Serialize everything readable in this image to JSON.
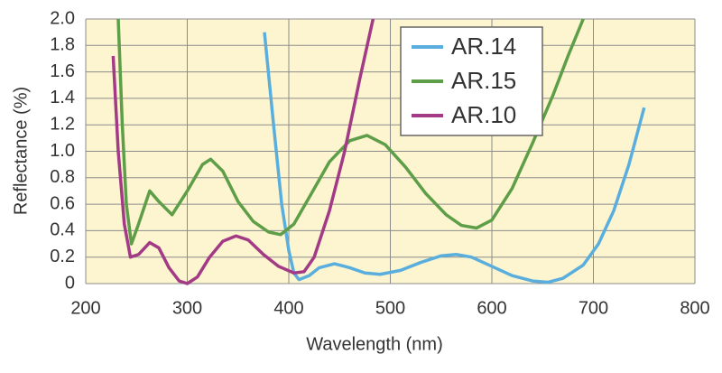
{
  "chart_data": {
    "type": "line",
    "xlabel": "Wavelength (nm)",
    "ylabel": "Reflectance (%)",
    "xlim": [
      200,
      800
    ],
    "xticks": [
      200,
      300,
      400,
      500,
      600,
      700,
      800
    ],
    "ylim": [
      0,
      2
    ],
    "yticks": [
      0,
      0.2,
      0.4,
      0.6,
      0.8,
      {
        "value": 1,
        "label": "1.0"
      },
      1.2,
      1.4,
      1.6,
      1.8,
      {
        "value": 2,
        "label": "2.0"
      }
    ],
    "grid": true,
    "legend": "upper center",
    "background": "#fdf5d0",
    "series": [
      {
        "name": "AR.14",
        "color": "#5aaede",
        "x": [
          376,
          385,
          393,
          400,
          405,
          410,
          420,
          430,
          445,
          460,
          475,
          490,
          510,
          530,
          550,
          565,
          580,
          600,
          620,
          640,
          655,
          670,
          690,
          705,
          720,
          735,
          750
        ],
        "values": [
          1.9,
          1.2,
          0.6,
          0.25,
          0.08,
          0.03,
          0.06,
          0.12,
          0.15,
          0.12,
          0.08,
          0.07,
          0.1,
          0.16,
          0.21,
          0.22,
          0.2,
          0.13,
          0.06,
          0.02,
          0.01,
          0.04,
          0.14,
          0.3,
          0.55,
          0.9,
          1.33
        ]
      },
      {
        "name": "AR.15",
        "color": "#5e9e48",
        "x": [
          232,
          236,
          240,
          245,
          252,
          263,
          272,
          285,
          300,
          315,
          323,
          335,
          350,
          365,
          380,
          392,
          405,
          420,
          440,
          460,
          477,
          495,
          515,
          535,
          555,
          570,
          585,
          600,
          620,
          640,
          660,
          675,
          690
        ],
        "values": [
          2.0,
          1.2,
          0.6,
          0.3,
          0.45,
          0.7,
          0.62,
          0.52,
          0.7,
          0.9,
          0.94,
          0.85,
          0.62,
          0.47,
          0.39,
          0.37,
          0.45,
          0.65,
          0.92,
          1.08,
          1.12,
          1.05,
          0.88,
          0.68,
          0.52,
          0.44,
          0.42,
          0.48,
          0.72,
          1.06,
          1.42,
          1.72,
          2.0
        ]
      },
      {
        "name": "AR.10",
        "color": "#a33a86",
        "x": [
          227,
          232,
          238,
          244,
          252,
          263,
          272,
          282,
          292,
          300,
          310,
          322,
          335,
          348,
          360,
          375,
          390,
          405,
          415,
          425,
          440,
          455,
          470,
          483
        ],
        "values": [
          1.72,
          1.0,
          0.45,
          0.2,
          0.22,
          0.31,
          0.27,
          0.12,
          0.02,
          0.0,
          0.05,
          0.2,
          0.32,
          0.36,
          0.33,
          0.22,
          0.13,
          0.08,
          0.09,
          0.2,
          0.55,
          1.0,
          1.55,
          2.0
        ]
      }
    ]
  }
}
